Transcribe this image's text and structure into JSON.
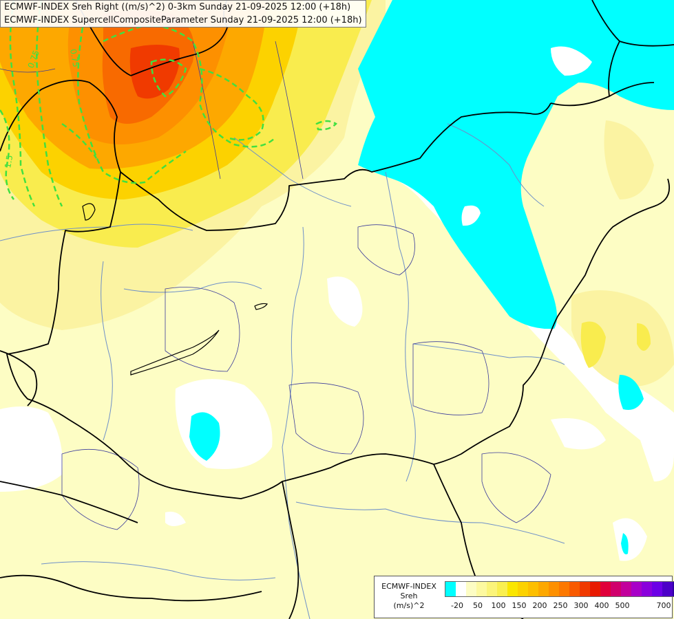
{
  "titles": {
    "line1": "ECMWF-INDEX Sreh Right ((m/s)^2) 0-3km Sunday 21-09-2025 12:00 (+18h)",
    "line2": "ECMWF-INDEX SupercellCompositeParameter Sunday 21-09-2025 12:00 (+18h)"
  },
  "contour_labels": [
    "0.75",
    "0.75",
    "1.5"
  ],
  "legend": {
    "source": "ECMWF-INDEX",
    "variable": "Sreh",
    "unit": "(m/s)^2",
    "colors": [
      "#00ffff",
      "#ffffff",
      "#fdfdc4",
      "#fdf9a0",
      "#fbf47a",
      "#f9ef50",
      "#fae600",
      "#fcd200",
      "#fdbf00",
      "#fda800",
      "#fd9000",
      "#fc7800",
      "#f85a00",
      "#f03a00",
      "#e81a00",
      "#e0003a",
      "#d0006c",
      "#c2009c",
      "#a800c8",
      "#8a00dc",
      "#6c00e6",
      "#4c00c8",
      "#3000a4",
      "#100070"
    ],
    "tick_labels": [
      "-20",
      "50",
      "100",
      "150",
      "200",
      "250",
      "300",
      "400",
      "500",
      "700"
    ]
  }
}
